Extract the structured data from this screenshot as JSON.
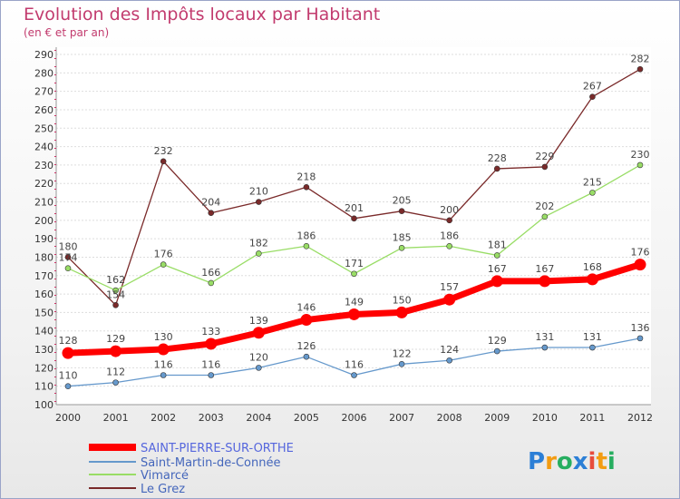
{
  "chart_data": {
    "type": "line",
    "title": "Evolution des Impôts locaux par Habitant",
    "subtitle": "(en € et par an)",
    "xlabel": "",
    "ylabel": "",
    "x": [
      "2000",
      "2001",
      "2002",
      "2003",
      "2004",
      "2005",
      "2006",
      "2007",
      "2008",
      "2009",
      "2010",
      "2011",
      "2012"
    ],
    "ylim": [
      100,
      290
    ],
    "yticks": [
      100,
      110,
      120,
      130,
      140,
      150,
      160,
      170,
      180,
      190,
      200,
      210,
      220,
      230,
      240,
      250,
      260,
      270,
      280,
      290
    ],
    "grid": true,
    "legend": "bottom-left",
    "series": [
      {
        "name": "SAINT-PIERRE-SUR-ORTHE",
        "color": "#ff0000",
        "values": [
          128,
          129,
          130,
          133,
          139,
          146,
          149,
          150,
          157,
          167,
          167,
          168,
          176
        ]
      },
      {
        "name": "Saint-Martin-de-Connée",
        "color": "#6699cc",
        "values": [
          110,
          112,
          116,
          116,
          120,
          126,
          116,
          122,
          124,
          129,
          131,
          131,
          136
        ]
      },
      {
        "name": "Vimarcé",
        "color": "#99dd66",
        "values": [
          174,
          162,
          176,
          166,
          182,
          186,
          171,
          185,
          186,
          181,
          202,
          215,
          230
        ]
      },
      {
        "name": "Le Grez",
        "color": "#7a2a2a",
        "values": [
          180,
          154,
          232,
          204,
          210,
          218,
          201,
          205,
          200,
          228,
          229,
          267,
          282
        ]
      }
    ]
  },
  "branding": {
    "logo_text": "Proxiti"
  }
}
